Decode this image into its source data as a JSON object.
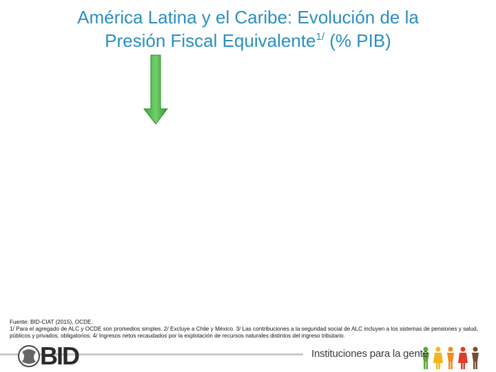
{
  "header": {
    "title_line1": "América Latina y el Caribe: Evolución de la",
    "title_line2": "Presión Fiscal Equivalente",
    "title_superscript": "1/",
    "title_line2_end": " (% PIB)"
  },
  "notes": {
    "source": "Fuente: BID-CIAT (2015), OCDE.",
    "footnote": "1/ Para el agregado de ALC y OCDE son promedios simples. 2/ Excluye a Chile y México. 3/ Las contribuciones a la seguridad social de ALC incluyen a los sistemas de pensiones y salud, públicos y privados, obligatorios. 4/ Ingresos netos recaudados por la explotación de recursos naturales distintos del ingreso tributario."
  },
  "footer": {
    "logo": "BID",
    "tagline": "Instituciones para la gente"
  }
}
